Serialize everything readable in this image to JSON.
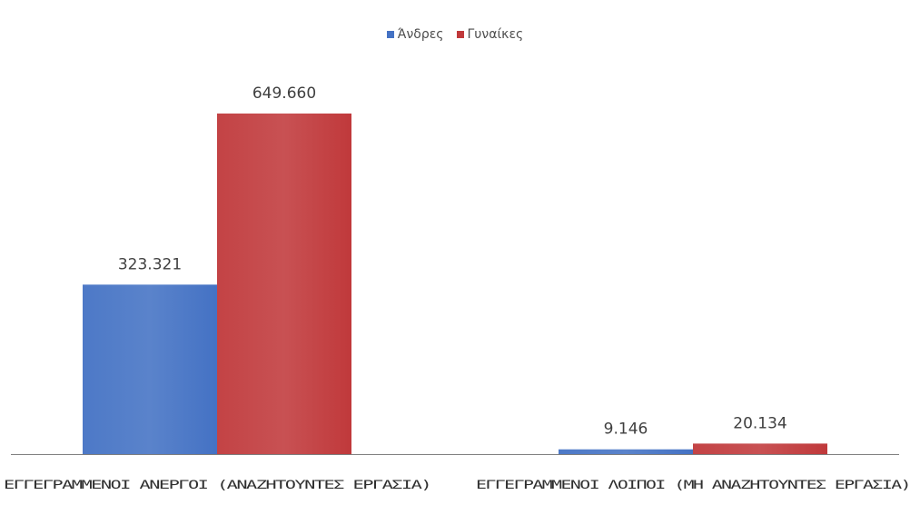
{
  "chart_data": {
    "type": "bar",
    "title": "",
    "xlabel": "",
    "ylabel": "",
    "categories": [
      "ΕΓΓΕΓΡΑΜΜΕΝΟΙ ΑΝΕΡΓΟΙ (ΑΝΑΖΗΤΟΥΝΤΕΣ ΕΡΓΑΣΙΑ)",
      "ΕΓΓΕΓΡΑΜΜΕΝΟΙ ΛΟΙΠΟΙ (ΜΗ ΑΝΑΖΗΤΟΥΝΤΕΣ ΕΡΓΑΣΙΑ)"
    ],
    "series": [
      {
        "name": "Άνδρες",
        "color": "#4472c4",
        "values": [
          323321,
          9146
        ],
        "value_labels": [
          "323.321",
          "9.146"
        ]
      },
      {
        "name": "Γυναίκες",
        "color": "#c0393b",
        "values": [
          649660,
          20134
        ],
        "value_labels": [
          "649.660",
          "20.134"
        ]
      }
    ],
    "ylim": [
      0,
      700000
    ],
    "grid": false,
    "legend_position": "top-center",
    "axis_color": "#7f7f7f"
  }
}
